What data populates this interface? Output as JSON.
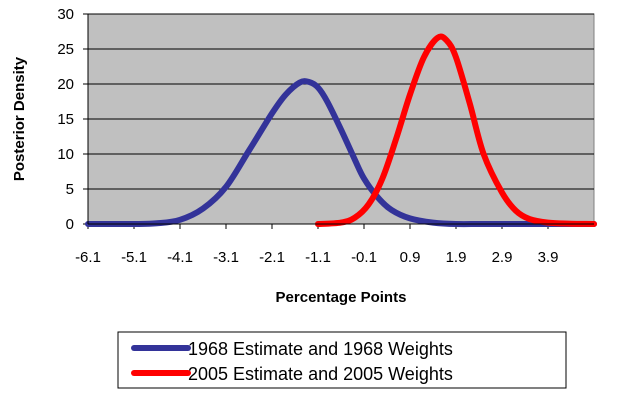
{
  "chart_data": {
    "type": "line",
    "title": "",
    "xlabel": "Percentage Points",
    "ylabel": "Posterior Density",
    "xlim": [
      -6.1,
      4.9
    ],
    "ylim": [
      0,
      30
    ],
    "x_ticks": [
      "-6.1",
      "-5.1",
      "-4.1",
      "-3.1",
      "-2.1",
      "-1.1",
      "-0.1",
      "0.9",
      "1.9",
      "2.9",
      "3.9"
    ],
    "y_ticks": [
      "0",
      "5",
      "10",
      "15",
      "20",
      "25",
      "30"
    ],
    "grid": "horizontal",
    "plot_background": "#c0c0c0",
    "legend_position": "bottom",
    "series": [
      {
        "name": "1968 Estimate and 1968 Weights",
        "color": "#333399",
        "x": [
          -6.1,
          -5.1,
          -4.6,
          -4.1,
          -3.6,
          -3.1,
          -2.6,
          -2.1,
          -1.8,
          -1.5,
          -1.3,
          -1.1,
          -0.9,
          -0.6,
          -0.3,
          -0.1,
          0.2,
          0.5,
          0.9,
          1.4,
          1.9,
          2.4,
          2.9,
          3.4,
          3.9,
          4.9
        ],
        "y": [
          0,
          0,
          0.1,
          0.6,
          2.2,
          5.3,
          10.5,
          15.8,
          18.5,
          20.2,
          20.3,
          19.5,
          17.5,
          13.5,
          9.2,
          6.5,
          3.8,
          2.0,
          0.8,
          0.2,
          0,
          0,
          0,
          0,
          0,
          0
        ]
      },
      {
        "name": "2005 Estimate and 2005 Weights",
        "color": "#ff0000",
        "x": [
          -1.1,
          -0.6,
          -0.3,
          0.0,
          0.3,
          0.6,
          0.9,
          1.2,
          1.5,
          1.7,
          1.9,
          2.2,
          2.5,
          2.9,
          3.2,
          3.5,
          3.9,
          4.4,
          4.9
        ],
        "y": [
          0,
          0.2,
          0.9,
          2.8,
          6.5,
          12.2,
          18.5,
          23.8,
          26.6,
          26.2,
          23.8,
          17.2,
          10.0,
          4.5,
          1.9,
          0.7,
          0.2,
          0.05,
          0
        ]
      }
    ]
  }
}
